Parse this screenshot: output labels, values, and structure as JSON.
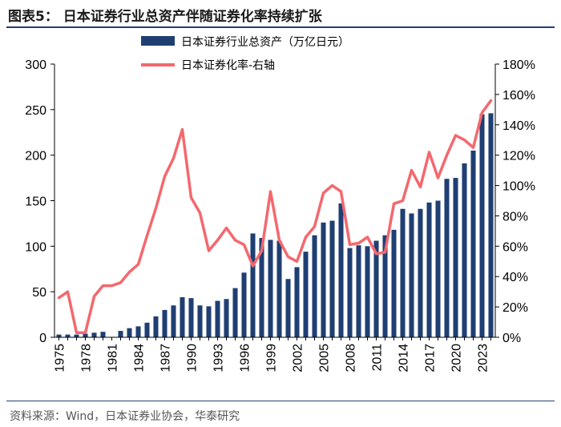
{
  "figure": {
    "title": "图表5：  日本证券行业总资产伴随证券化率持续扩张",
    "source": "资料来源：Wind，日本证券业协会，华泰研究"
  },
  "chart_data": {
    "type": "bar",
    "title": "",
    "xlabel": "",
    "ylabel": "",
    "x_tick_labels": [
      "1975",
      "1978",
      "1981",
      "1984",
      "1987",
      "1990",
      "1993",
      "1996",
      "1999",
      "2002",
      "2005",
      "2008",
      "2011",
      "2014",
      "2017",
      "2020",
      "2023"
    ],
    "ylim": [
      0,
      300
    ],
    "y_ticks": [
      0,
      50,
      100,
      150,
      200,
      250,
      300
    ],
    "y_tick_labels": [
      "0",
      "50",
      "100",
      "150",
      "200",
      "250",
      "300"
    ],
    "y2lim": [
      0,
      180
    ],
    "y2_ticks": [
      0,
      20,
      40,
      60,
      80,
      100,
      120,
      140,
      160,
      180
    ],
    "y2_tick_labels": [
      "0%",
      "20%",
      "40%",
      "60%",
      "80%",
      "100%",
      "120%",
      "140%",
      "160%",
      "180%"
    ],
    "legend_position": "top-center",
    "grid": false,
    "x": [
      1975,
      1976,
      1977,
      1978,
      1979,
      1980,
      1981,
      1982,
      1983,
      1984,
      1985,
      1986,
      1987,
      1988,
      1989,
      1990,
      1991,
      1992,
      1993,
      1994,
      1995,
      1996,
      1997,
      1998,
      1999,
      2000,
      2001,
      2002,
      2003,
      2004,
      2005,
      2006,
      2007,
      2008,
      2009,
      2010,
      2011,
      2012,
      2013,
      2014,
      2015,
      2016,
      2017,
      2018,
      2019,
      2020,
      2021,
      2022,
      2023,
      2024
    ],
    "series": [
      {
        "name": "日本证券行业总资产（万亿日元）",
        "type": "bar",
        "axis": "left",
        "color": "#1f3f73",
        "values": [
          3,
          3,
          3,
          4,
          5,
          6,
          null,
          7,
          10,
          12,
          16,
          23,
          30,
          35,
          44,
          43,
          35,
          34,
          40,
          42,
          54,
          71,
          114,
          109,
          107,
          106,
          64,
          77,
          94,
          112,
          126,
          128,
          147,
          98,
          101,
          100,
          106,
          112,
          118,
          141,
          136,
          141,
          148,
          150,
          174,
          175,
          191,
          205,
          245,
          246
        ]
      },
      {
        "name": "日本证券化率-右轴",
        "type": "line",
        "axis": "right",
        "color": "#f4686e",
        "values": [
          26,
          30,
          3,
          3,
          27,
          34,
          34,
          36,
          43,
          48,
          67,
          85,
          106,
          118,
          137,
          92,
          82,
          57,
          64,
          72,
          64,
          61,
          47,
          57,
          96,
          64,
          53,
          50,
          66,
          73,
          95,
          100,
          96,
          61,
          62,
          66,
          55,
          56,
          88,
          90,
          110,
          99,
          122,
          105,
          120,
          133,
          130,
          125,
          148,
          156
        ]
      }
    ]
  }
}
